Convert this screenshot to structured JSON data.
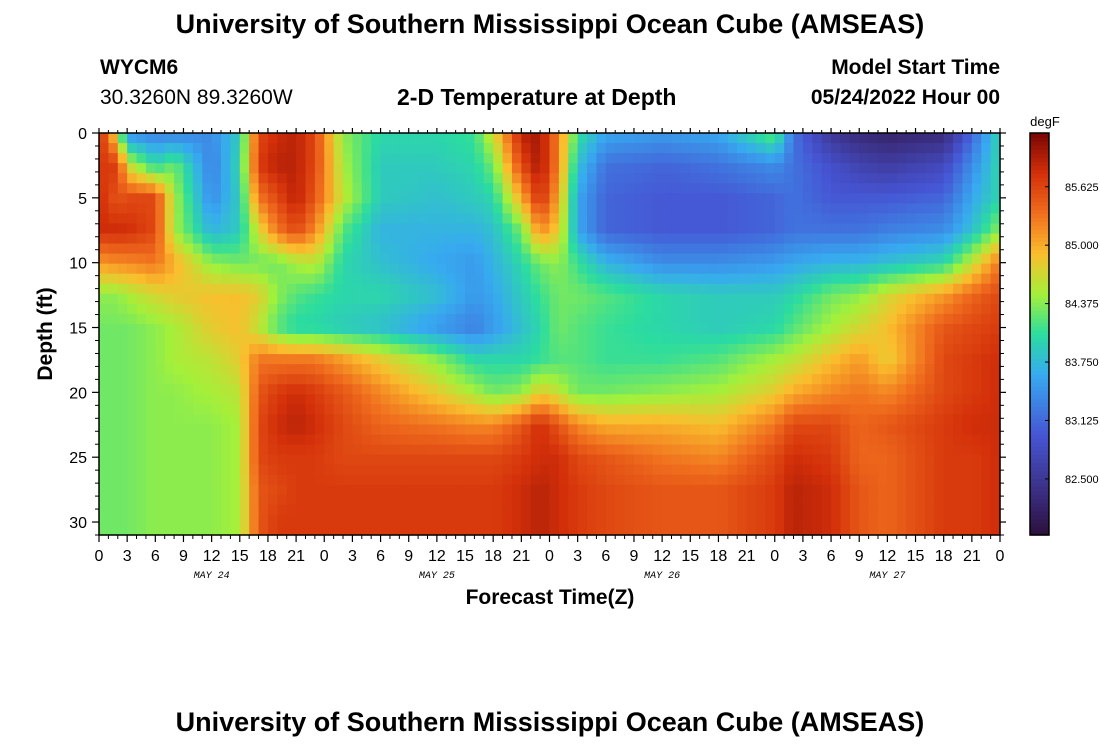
{
  "header": {
    "title": "University of Southern Mississippi Ocean Cube (AMSEAS)",
    "station": "WYCM6",
    "coords": "30.3260N  89.3260W",
    "subtitle": "2-D Temperature at Depth",
    "model_start_label": "Model Start Time",
    "model_start_value": "05/24/2022 Hour 00"
  },
  "footer": {
    "title": "University of Southern Mississippi Ocean Cube (AMSEAS)"
  },
  "chart_data": {
    "type": "heatmap",
    "title": "2-D Temperature at Depth",
    "xlabel": "Forecast Time(Z)",
    "ylabel": "Depth (ft)",
    "x_unit": "hours since 05/24/2022 00Z",
    "xlim": [
      0,
      96
    ],
    "ylim": [
      0,
      31
    ],
    "x_tick_values": [
      0,
      3,
      6,
      9,
      12,
      15,
      18,
      21,
      24,
      27,
      30,
      33,
      36,
      39,
      42,
      45,
      48,
      51,
      54,
      57,
      60,
      63,
      66,
      69,
      72,
      75,
      78,
      81,
      84,
      87,
      90,
      93,
      96
    ],
    "x_tick_labels": [
      "0",
      "3",
      "6",
      "9",
      "12",
      "15",
      "18",
      "21",
      "0",
      "3",
      "6",
      "9",
      "12",
      "15",
      "18",
      "21",
      "0",
      "3",
      "6",
      "9",
      "12",
      "15",
      "18",
      "21",
      "0",
      "3",
      "6",
      "9",
      "12",
      "15",
      "18",
      "21",
      "0"
    ],
    "date_labels": [
      {
        "hour": 12,
        "text": "MAY 24"
      },
      {
        "hour": 36,
        "text": "MAY 25"
      },
      {
        "hour": 60,
        "text": "MAY 26"
      },
      {
        "hour": 84,
        "text": "MAY 27"
      }
    ],
    "y_ticks": [
      0,
      5,
      10,
      15,
      20,
      25,
      30
    ],
    "colorbar": {
      "unit": "degF",
      "min": 81.9,
      "max": 86.2,
      "ticks": [
        82.5,
        83.125,
        83.75,
        84.375,
        85.0,
        85.625
      ],
      "tick_labels": [
        "82.500",
        "83.125",
        "83.750",
        "84.375",
        "85.000",
        "85.625"
      ]
    },
    "depths": [
      0,
      2.5,
      5,
      7.5,
      10,
      12.5,
      15,
      17.5,
      20,
      22.5,
      25,
      27.5,
      30,
      31
    ],
    "times": [
      0,
      2,
      3,
      6,
      8,
      12,
      15,
      17,
      19,
      21,
      23,
      26,
      30,
      36,
      40,
      42,
      45,
      47,
      49,
      51,
      54,
      60,
      66,
      72,
      74,
      78,
      81,
      84,
      90,
      93,
      96
    ],
    "temperature": [
      [
        85.9,
        84.6,
        83.4,
        83.3,
        83.3,
        83.4,
        83.9,
        85.6,
        85.8,
        85.9,
        85.6,
        84.4,
        84.0,
        84.0,
        84.1,
        84.7,
        85.9,
        86.0,
        85.2,
        84.1,
        83.6,
        83.5,
        83.6,
        84.3,
        83.2,
        82.5,
        82.3,
        82.2,
        82.3,
        83.1,
        84.0
      ],
      [
        85.7,
        85.7,
        84.7,
        84.0,
        84.3,
        83.3,
        84.0,
        85.7,
        85.9,
        85.9,
        85.6,
        84.5,
        83.9,
        83.9,
        84.0,
        84.3,
        85.6,
        86.0,
        85.2,
        83.8,
        83.2,
        83.1,
        83.2,
        83.4,
        83.2,
        82.9,
        82.7,
        82.6,
        82.8,
        83.4,
        84.0
      ],
      [
        85.8,
        85.5,
        85.6,
        85.6,
        84.5,
        83.4,
        83.9,
        85.3,
        85.6,
        85.9,
        85.5,
        84.6,
        83.9,
        83.8,
        83.9,
        84.0,
        85.0,
        85.8,
        85.0,
        83.6,
        83.1,
        83.0,
        83.0,
        83.1,
        83.2,
        83.0,
        83.0,
        83.0,
        83.1,
        83.6,
        84.0
      ],
      [
        85.8,
        85.8,
        85.8,
        85.6,
        84.5,
        83.7,
        83.9,
        84.7,
        85.3,
        85.6,
        85.2,
        84.2,
        83.7,
        83.7,
        83.7,
        83.8,
        84.3,
        85.2,
        84.8,
        83.6,
        83.1,
        83.0,
        83.0,
        83.1,
        83.2,
        83.2,
        83.2,
        83.3,
        83.4,
        83.8,
        84.4
      ],
      [
        85.1,
        85.2,
        85.2,
        85.3,
        85.0,
        84.4,
        84.3,
        84.3,
        84.3,
        84.5,
        84.6,
        84.0,
        83.8,
        83.6,
        83.5,
        83.7,
        84.0,
        84.3,
        84.4,
        84.1,
        83.7,
        83.4,
        83.4,
        83.5,
        83.6,
        83.7,
        83.7,
        83.8,
        84.0,
        84.6,
        85.3
      ],
      [
        84.4,
        84.4,
        84.5,
        84.7,
        84.8,
        84.9,
        84.9,
        84.8,
        84.4,
        84.2,
        84.1,
        84.0,
        84.0,
        83.8,
        83.5,
        83.6,
        83.9,
        84.1,
        84.3,
        84.3,
        84.2,
        84.0,
        83.9,
        83.9,
        84.0,
        84.3,
        84.4,
        84.7,
        85.1,
        85.4,
        85.6
      ],
      [
        84.3,
        84.3,
        84.3,
        84.4,
        84.5,
        84.8,
        84.9,
        84.6,
        84.2,
        84.0,
        84.0,
        83.9,
        83.8,
        83.5,
        83.3,
        83.5,
        83.8,
        84.0,
        84.3,
        84.2,
        84.1,
        84.0,
        83.9,
        84.0,
        84.2,
        84.5,
        84.7,
        84.9,
        85.5,
        85.6,
        85.7
      ],
      [
        84.3,
        84.3,
        84.3,
        84.4,
        84.5,
        84.6,
        84.8,
        85.3,
        85.3,
        85.3,
        85.3,
        85.1,
        84.8,
        84.4,
        84.0,
        84.0,
        84.0,
        84.1,
        84.2,
        84.2,
        84.1,
        84.1,
        84.2,
        84.5,
        84.6,
        84.9,
        85.1,
        84.8,
        85.6,
        85.7,
        85.8
      ],
      [
        84.3,
        84.3,
        84.3,
        84.4,
        84.4,
        84.5,
        84.6,
        85.5,
        85.7,
        85.8,
        85.7,
        85.5,
        85.2,
        84.8,
        84.5,
        84.3,
        84.4,
        84.8,
        84.6,
        84.3,
        84.3,
        84.4,
        84.5,
        84.8,
        85.0,
        85.2,
        85.3,
        85.2,
        85.6,
        85.7,
        85.8
      ],
      [
        84.3,
        84.3,
        84.3,
        84.4,
        84.4,
        84.4,
        84.5,
        85.6,
        85.8,
        85.9,
        85.8,
        85.6,
        85.4,
        85.3,
        85.2,
        85.2,
        85.5,
        85.8,
        85.5,
        85.2,
        85.0,
        85.0,
        84.9,
        85.3,
        85.6,
        85.6,
        85.4,
        85.5,
        85.7,
        85.8,
        85.8
      ],
      [
        84.3,
        84.3,
        84.3,
        84.4,
        84.4,
        84.4,
        84.5,
        85.6,
        85.7,
        85.7,
        85.7,
        85.6,
        85.6,
        85.6,
        85.6,
        85.6,
        85.7,
        85.8,
        85.8,
        85.6,
        85.5,
        85.3,
        85.2,
        85.6,
        85.8,
        85.7,
        85.4,
        85.4,
        85.7,
        85.7,
        85.8
      ],
      [
        84.3,
        84.3,
        84.3,
        84.4,
        84.4,
        84.4,
        84.5,
        85.5,
        85.6,
        85.7,
        85.7,
        85.7,
        85.7,
        85.7,
        85.7,
        85.7,
        85.8,
        85.9,
        85.8,
        85.7,
        85.6,
        85.5,
        85.5,
        85.7,
        85.9,
        85.8,
        85.5,
        85.4,
        85.7,
        85.7,
        85.8
      ],
      [
        84.3,
        84.3,
        84.3,
        84.4,
        84.4,
        84.4,
        84.5,
        85.5,
        85.7,
        85.7,
        85.7,
        85.7,
        85.7,
        85.7,
        85.7,
        85.7,
        85.8,
        85.9,
        85.8,
        85.7,
        85.6,
        85.5,
        85.5,
        85.7,
        85.9,
        85.8,
        85.5,
        85.4,
        85.7,
        85.7,
        85.8
      ],
      [
        84.3,
        84.3,
        84.3,
        84.4,
        84.4,
        84.4,
        84.5,
        85.5,
        85.7,
        85.7,
        85.7,
        85.7,
        85.7,
        85.7,
        85.7,
        85.7,
        85.8,
        85.9,
        85.8,
        85.7,
        85.6,
        85.5,
        85.5,
        85.7,
        85.9,
        85.8,
        85.5,
        85.4,
        85.7,
        85.7,
        85.8
      ]
    ]
  }
}
